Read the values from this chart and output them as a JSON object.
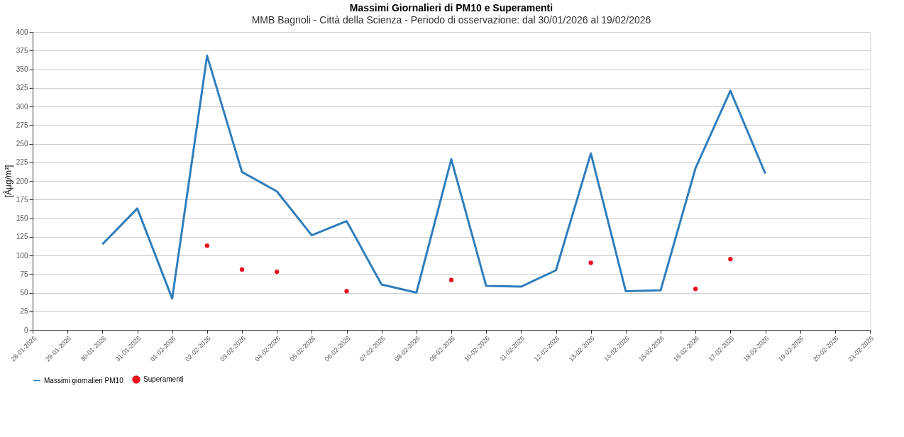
{
  "chart_data": {
    "type": "line",
    "title": "Massimi Giornalieri di PM10 e Superamenti",
    "subtitle": "MMB Bagnoli - Città della Scienza - Periodo di osservazione: dal 30/01/2026 al 19/02/2026",
    "ylabel": "[Âµg/m³]",
    "categories": [
      "28-01-2026",
      "29-01-2026",
      "30-01-2026",
      "31-01-2026",
      "01-02-2026",
      "02-02-2026",
      "03-02-2026",
      "04-02-2026",
      "05-02-2026",
      "06-02-2026",
      "07-02-2026",
      "08-02-2026",
      "09-02-2026",
      "10-02-2026",
      "11-02-2026",
      "12-02-2026",
      "13-02-2026",
      "14-02-2026",
      "15-02-2026",
      "16-02-2026",
      "17-02-2026",
      "18-02-2026",
      "19-02-2026",
      "20-02-2026",
      "21-02-2026"
    ],
    "series": [
      {
        "name": "Massimi giornalieri PM10",
        "color": "#2f7ebc",
        "values": [
          null,
          null,
          115,
          163,
          42,
          368,
          212,
          186,
          127,
          146,
          61,
          50,
          229,
          59,
          58,
          80,
          237,
          52,
          53,
          217,
          321,
          210,
          null,
          null,
          null
        ]
      },
      {
        "name": "Superamenti",
        "type": "scatter",
        "color": "#e8101c",
        "values": [
          null,
          null,
          null,
          null,
          null,
          113,
          81,
          78,
          null,
          52,
          null,
          null,
          67,
          null,
          null,
          null,
          90,
          null,
          null,
          55,
          95,
          null,
          null,
          null,
          null
        ]
      }
    ],
    "ylim": [
      0,
      400
    ],
    "yticks": [
      0,
      25,
      50,
      75,
      100,
      125,
      150,
      175,
      200,
      225,
      250,
      275,
      300,
      325,
      350,
      375,
      400
    ],
    "grid": "y",
    "legend": "bottom",
    "line_style": "solid"
  }
}
